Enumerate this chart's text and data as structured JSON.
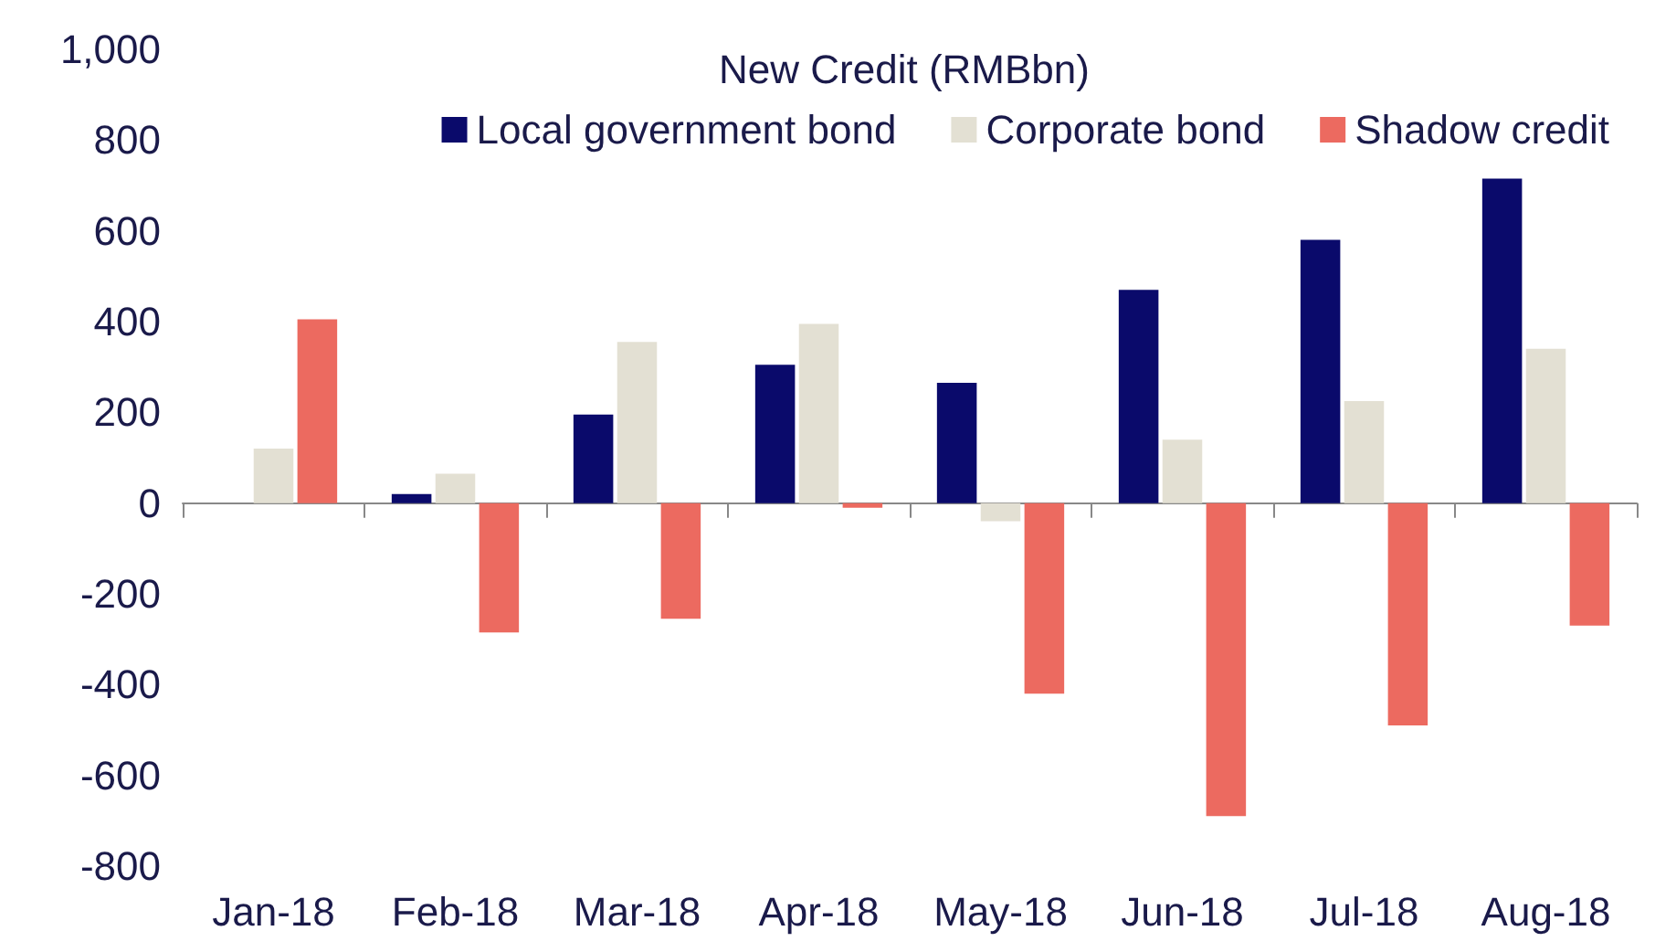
{
  "chart_data": {
    "type": "bar",
    "legend_title": "New Credit (RMBbn)",
    "legend": "top right",
    "categories": [
      "Jan-18",
      "Feb-18",
      "Mar-18",
      "Apr-18",
      "May-18",
      "Jun-18",
      "Jul-18",
      "Aug-18"
    ],
    "series": [
      {
        "name": "Local government bond",
        "color": "#0a0a6b",
        "values": [
          0,
          20,
          195,
          305,
          265,
          470,
          580,
          715
        ]
      },
      {
        "name": "Corporate bond",
        "color": "#e3e0d3",
        "values": [
          120,
          65,
          355,
          395,
          -40,
          140,
          225,
          340
        ]
      },
      {
        "name": "Shadow credit",
        "color": "#ec6a60",
        "values": [
          405,
          -285,
          -255,
          -10,
          -420,
          -690,
          -490,
          -270
        ]
      }
    ],
    "ylim": [
      -800,
      1000
    ],
    "yticks": [
      -800,
      -600,
      -400,
      -200,
      0,
      200,
      400,
      600,
      800,
      {
        "value": 1000,
        "label": "1,000"
      }
    ]
  }
}
